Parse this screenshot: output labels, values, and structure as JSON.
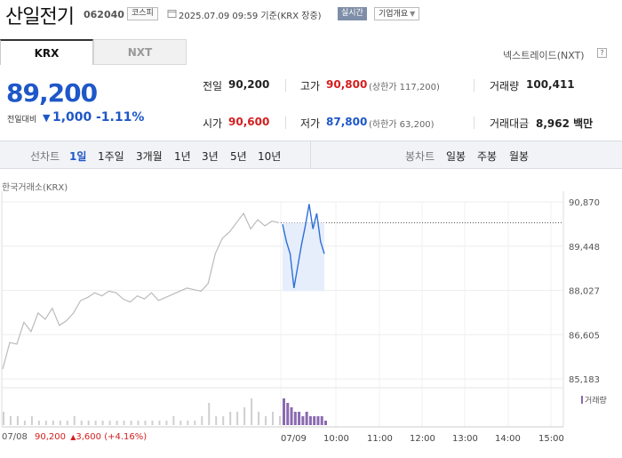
{
  "header": {
    "title": "산일전기",
    "code": "062040",
    "market": "코스피",
    "datetime": "2025.07.09 09:59 기준(KRX 장중)",
    "realtime_label": "실시간",
    "company_button": "기업개요"
  },
  "tabs": [
    {
      "label": "KRX",
      "active": true
    },
    {
      "label": "NXT",
      "active": false
    }
  ],
  "nxt_link": "넥스트레이드(NXT)",
  "help_label": "?",
  "quote": {
    "price": "89,200",
    "change_label": "전일대비",
    "change_direction": "down",
    "change_value": "1,000",
    "change_pct": "-1.11%"
  },
  "stats": {
    "prev_close": {
      "label": "전일",
      "value": "90,200"
    },
    "high": {
      "label": "고가",
      "value": "90,800",
      "sub": "(상한가 117,200)"
    },
    "volume": {
      "label": "거래량",
      "value": "100,411"
    },
    "open": {
      "label": "시가",
      "value": "90,600"
    },
    "low": {
      "label": "저가",
      "value": "87,800",
      "sub": "(하한가 63,200)"
    },
    "amount": {
      "label": "거래대금",
      "value": "8,962 백만"
    }
  },
  "periods": {
    "line_label": "선차트",
    "line_items": [
      "1일",
      "1주일",
      "3개월",
      "1년",
      "3년",
      "5년",
      "10년"
    ],
    "active": "1일",
    "candle_label": "봉차트",
    "candle_items": [
      "일봉",
      "주봉",
      "월봉"
    ]
  },
  "chart_data": {
    "type": "line",
    "source_label": "한국거래소(KRX)",
    "y_ticks": [
      "90,870",
      "89,448",
      "88,027",
      "86,605",
      "85,183"
    ],
    "ylim": [
      85183,
      90870
    ],
    "prev_close_reference": 90200,
    "x_labels": [
      "07/08",
      "07/09",
      "10:00",
      "11:00",
      "12:00",
      "13:00",
      "14:00",
      "15:00"
    ],
    "series": [
      {
        "style": "prev_day",
        "color": "#bbbbbb",
        "values": [
          85500,
          86350,
          86300,
          87000,
          86700,
          87300,
          87100,
          87450,
          86900,
          87050,
          87300,
          87700,
          87800,
          87950,
          87850,
          88000,
          87950,
          87750,
          87650,
          87850,
          87750,
          87950,
          87700,
          87800,
          87900,
          88000,
          88100,
          88050,
          88000,
          88250,
          89200,
          89700,
          89900,
          90200,
          90500,
          90000,
          90300,
          90100,
          90250,
          90200
        ]
      },
      {
        "style": "today",
        "color": "#2e6fd6",
        "values": [
          90150,
          89600,
          89200,
          88100,
          88800,
          89500,
          90100,
          90800,
          90000,
          90500,
          89600,
          89200
        ]
      }
    ],
    "volume_legend": "거래량",
    "volume": {
      "prev_day": [
        3,
        2,
        2,
        1,
        2,
        1,
        1,
        1,
        1,
        1,
        2,
        1,
        1,
        1,
        1,
        1,
        1,
        1,
        1,
        1,
        1,
        1,
        1,
        1,
        2,
        1,
        1,
        1,
        2,
        5,
        2,
        2,
        3,
        3,
        4,
        6,
        3,
        2,
        3,
        2
      ],
      "today": [
        6,
        5,
        4,
        3,
        3,
        2,
        3,
        2,
        2,
        2,
        2,
        1
      ]
    }
  },
  "bottom_info": {
    "date": "07/08",
    "price": "90,200",
    "arrow": "▲",
    "change": "3,600",
    "pct": "(+4.16%)"
  },
  "colors": {
    "down": "#1e57c8",
    "up": "#d41e1e",
    "today_line": "#2e6fd6",
    "volume_today": "#8a6ab0"
  }
}
